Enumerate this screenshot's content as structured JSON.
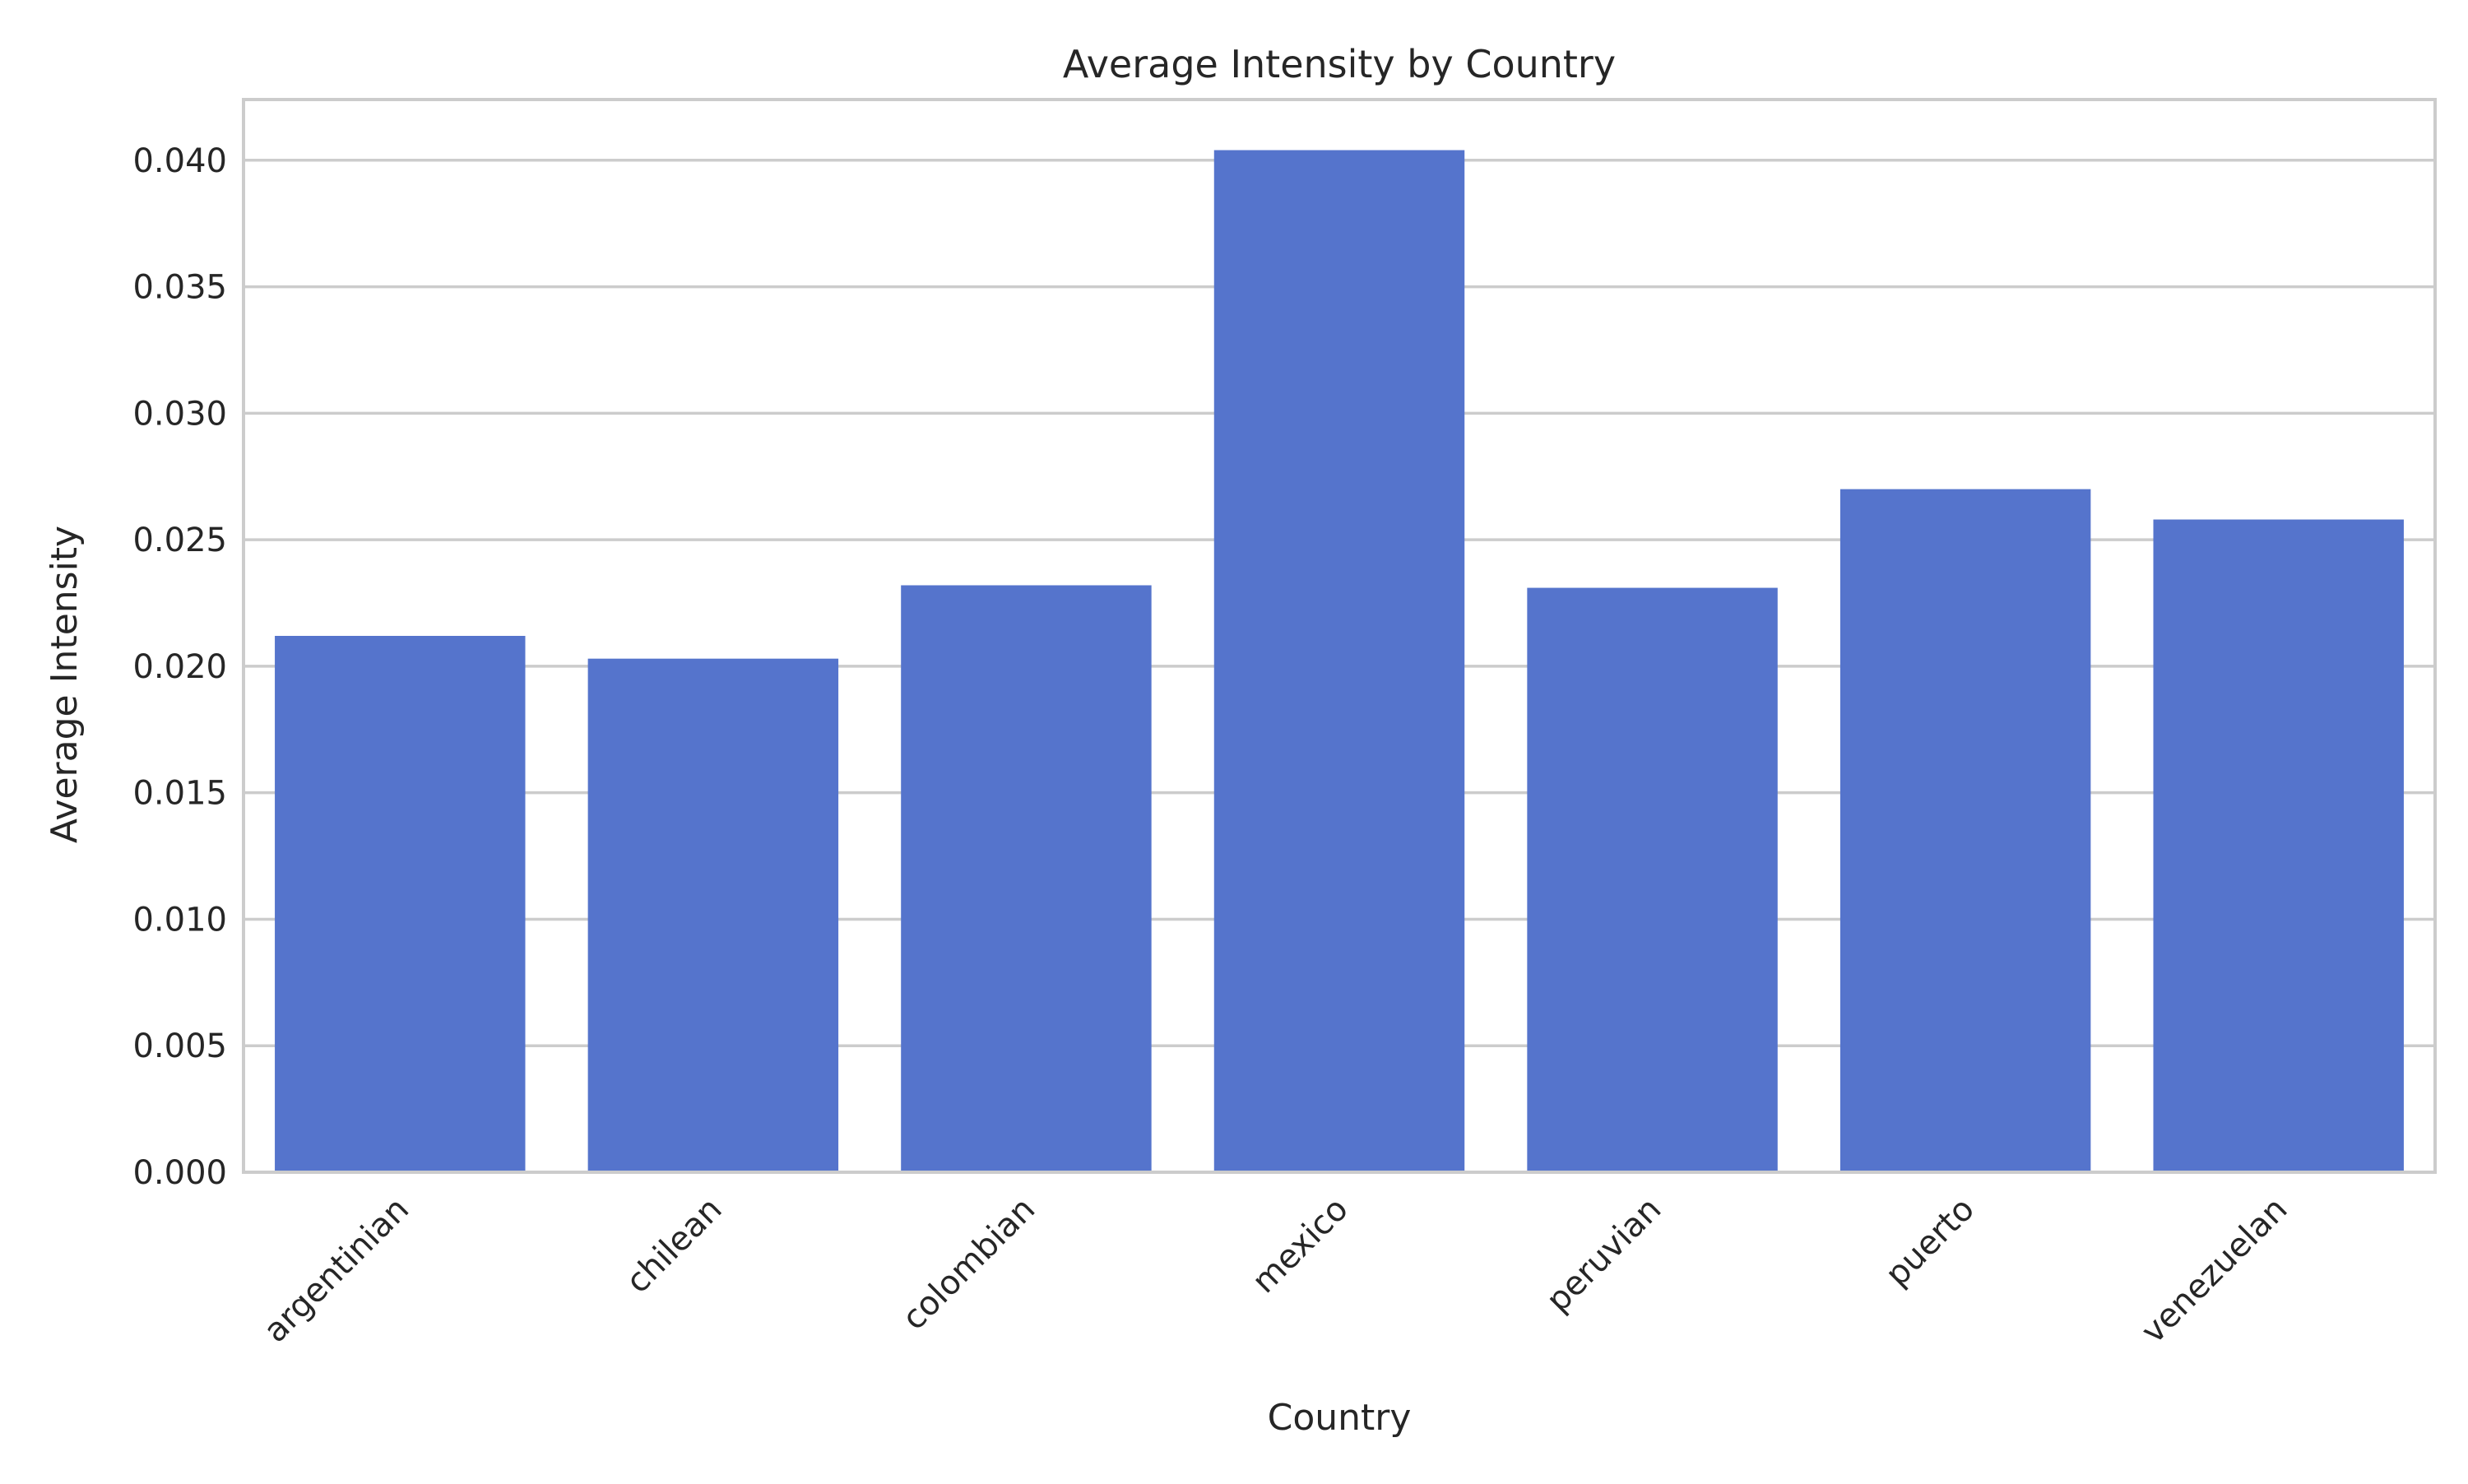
{
  "chart_data": {
    "type": "bar",
    "title": "Average Intensity by Country",
    "xlabel": "Country",
    "ylabel": "Average Intensity",
    "categories": [
      "argentinian",
      "chilean",
      "colombian",
      "mexico",
      "peruvian",
      "puerto",
      "venezuelan"
    ],
    "values": [
      0.0212,
      0.0203,
      0.0232,
      0.0404,
      0.0231,
      0.027,
      0.0258
    ],
    "ylim": [
      0,
      0.0424
    ],
    "yticks": [
      0.0,
      0.005,
      0.01,
      0.015,
      0.02,
      0.025,
      0.03,
      0.035,
      0.04
    ],
    "ytick_labels": [
      "0.000",
      "0.005",
      "0.010",
      "0.015",
      "0.020",
      "0.025",
      "0.030",
      "0.035",
      "0.040"
    ],
    "grid": "horizontal",
    "xtick_rotation_deg": -45,
    "bar_color": "#5574cc",
    "grid_color": "#cccccc"
  }
}
